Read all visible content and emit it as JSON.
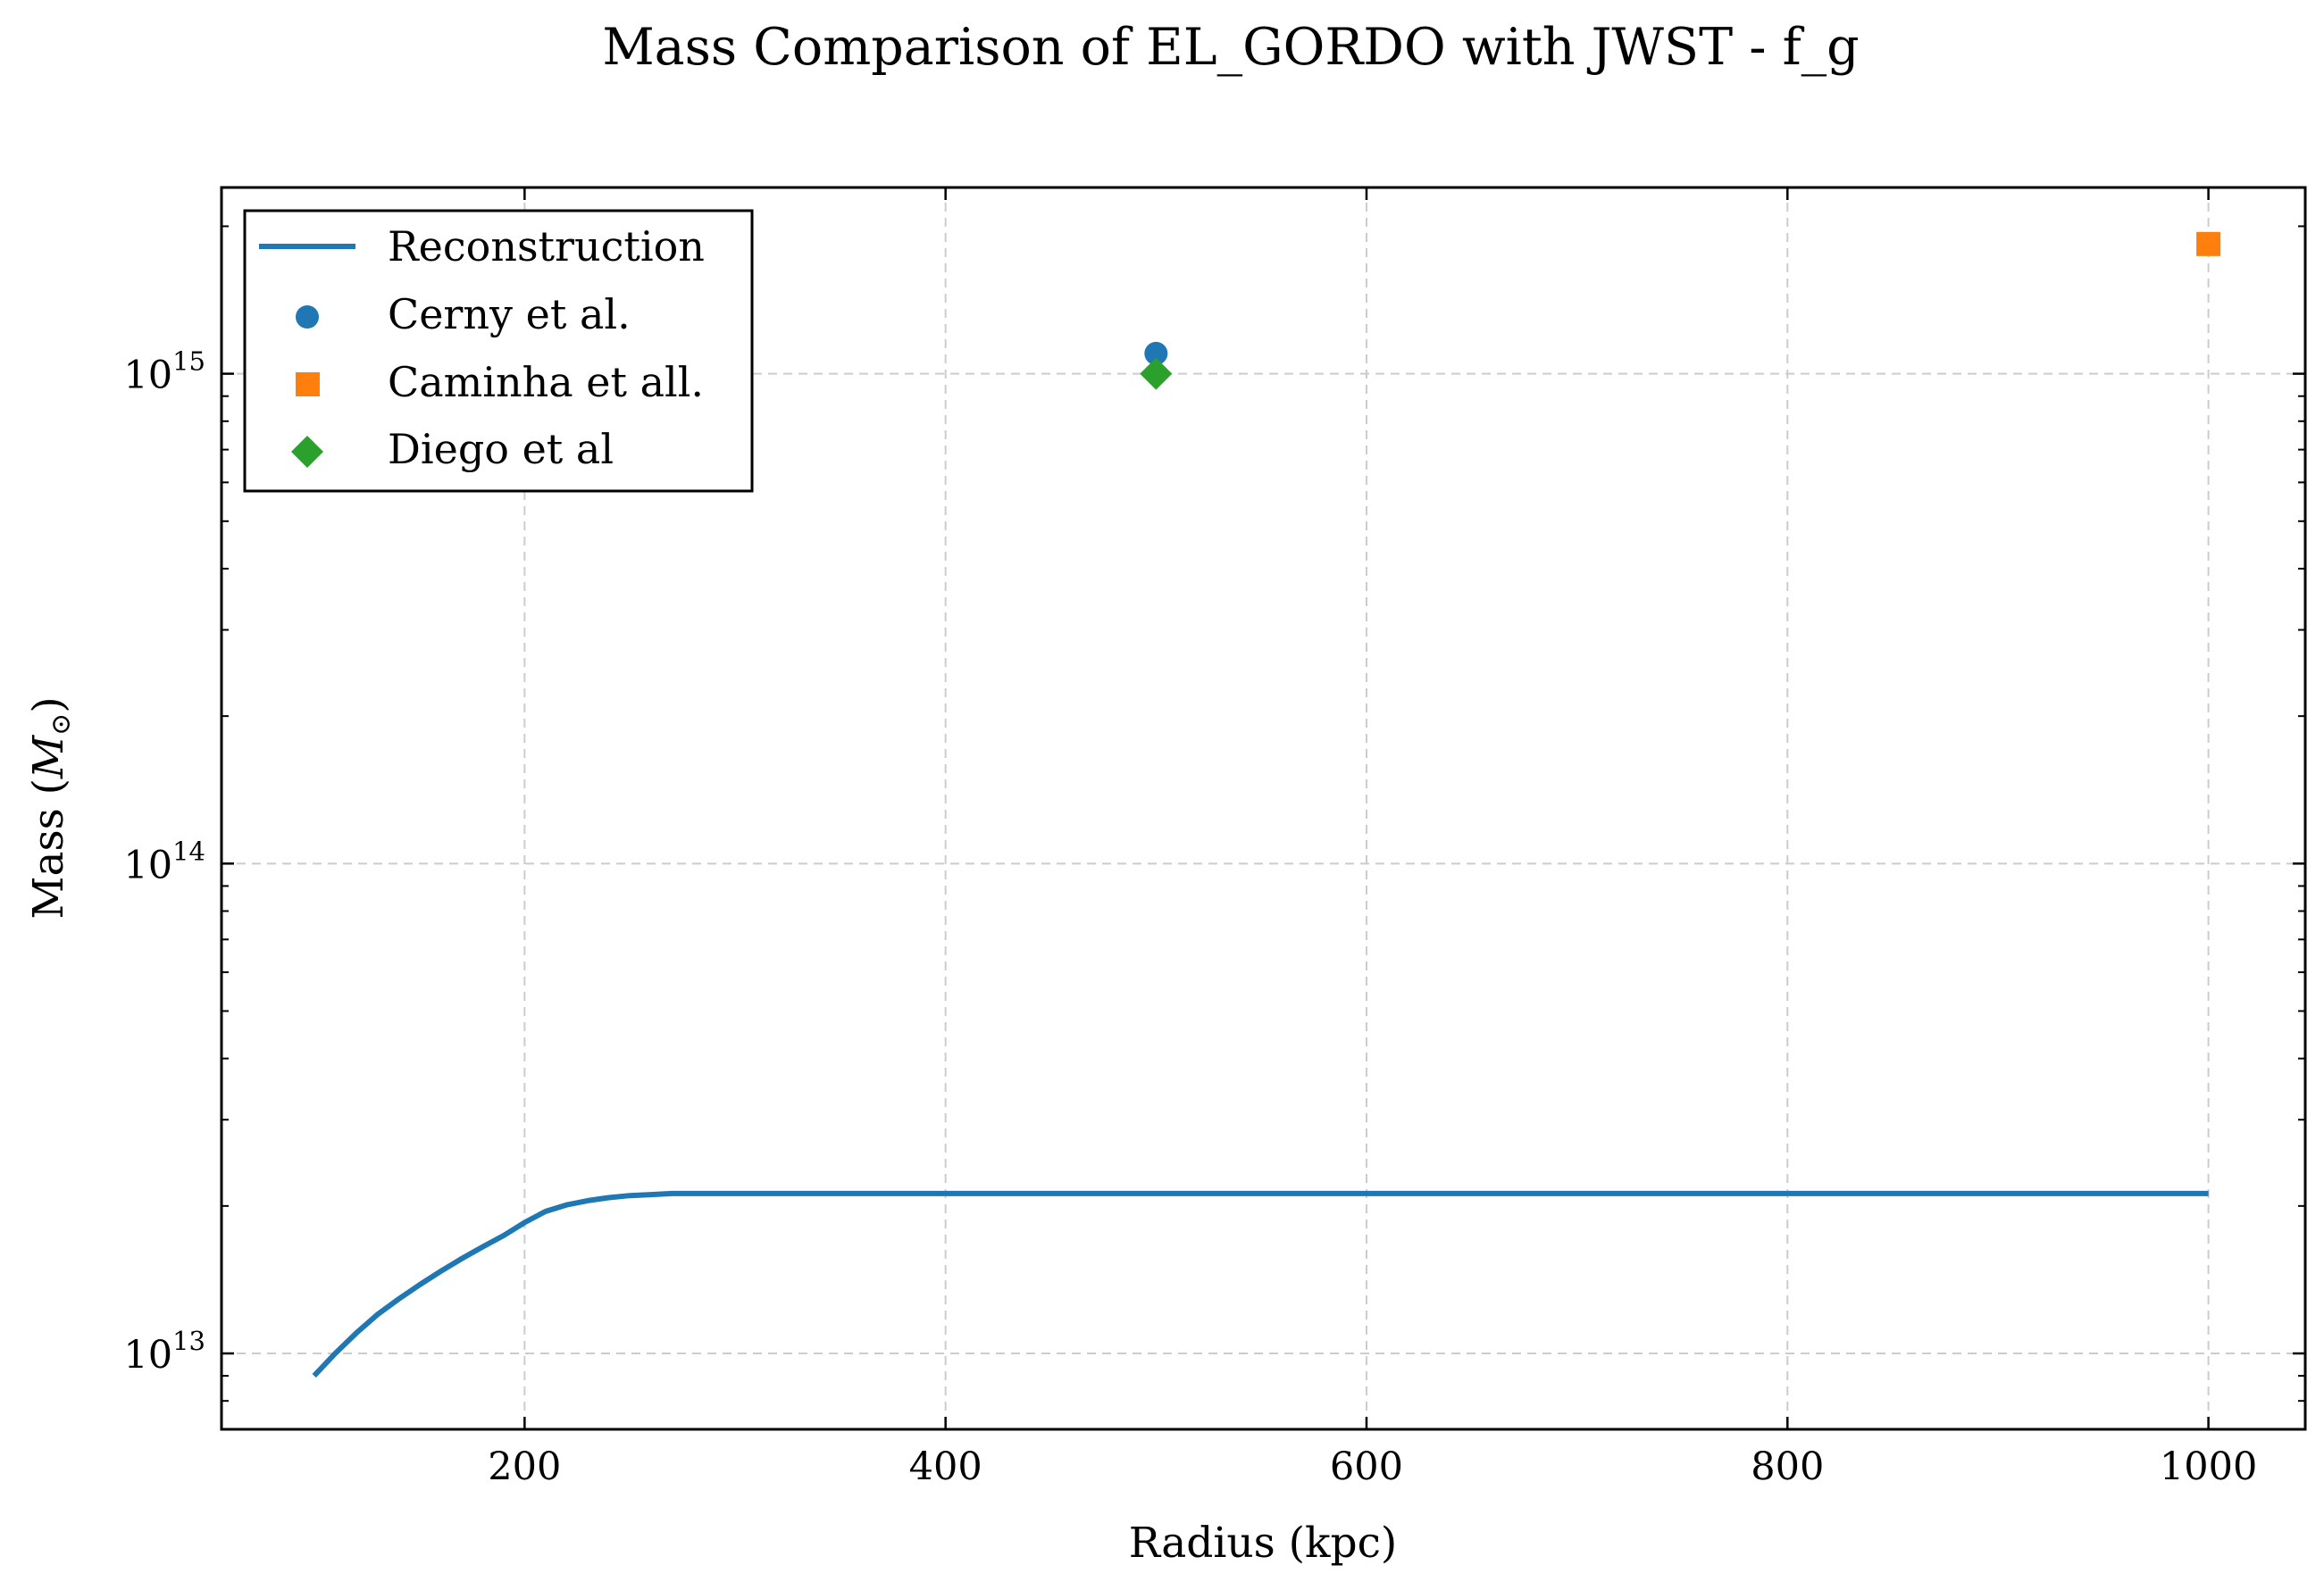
{
  "chart_data": {
    "type": "line",
    "title": "Mass Comparison of EL_GORDO with JWST - f_g",
    "xlabel": "Radius (kpc)",
    "ylabel_text": "Mass (",
    "ylabel_symbol": "M",
    "ylabel_subscript": "⊙",
    "ylabel_close": ")",
    "xlim": [
      56,
      1046
    ],
    "ylim": [
      7000000000000.0,
      2400000000000000.0
    ],
    "yscale": "log",
    "grid": true,
    "legend_position": "top-left",
    "x_ticks": [
      {
        "value": 200,
        "label": "200"
      },
      {
        "value": 400,
        "label": "400"
      },
      {
        "value": 600,
        "label": "600"
      },
      {
        "value": 800,
        "label": "800"
      },
      {
        "value": 1000,
        "label": "1000"
      }
    ],
    "y_ticks": [
      {
        "value": 10000000000000.0,
        "base": "10",
        "exp": "13"
      },
      {
        "value": 100000000000000.0,
        "base": "10",
        "exp": "14"
      },
      {
        "value": 1000000000000000.0,
        "base": "10",
        "exp": "15"
      }
    ],
    "series": [
      {
        "name": "Reconstruction",
        "kind": "line",
        "color": "#1f77b4",
        "x": [
          100,
          110,
          120,
          130,
          140,
          150,
          160,
          170,
          180,
          190,
          200,
          210,
          220,
          230,
          240,
          250,
          260,
          270,
          280,
          300,
          350,
          400,
          500,
          600,
          700,
          800,
          900,
          1000
        ],
        "y": [
          9000000000000.0,
          10000000000000.0,
          11000000000000.0,
          12000000000000.0,
          12900000000000.0,
          13800000000000.0,
          14700000000000.0,
          15600000000000.0,
          16500000000000.0,
          17400000000000.0,
          18500000000000.0,
          19500000000000.0,
          20100000000000.0,
          20500000000000.0,
          20800000000000.0,
          21000000000000.0,
          21100000000000.0,
          21200000000000.0,
          21200000000000.0,
          21200000000000.0,
          21200000000000.0,
          21200000000000.0,
          21200000000000.0,
          21200000000000.0,
          21200000000000.0,
          21200000000000.0,
          21200000000000.0,
          21200000000000.0
        ]
      },
      {
        "name": "Cerny et al.",
        "kind": "scatter",
        "marker": "circle",
        "color": "#1f77b4",
        "x": [
          500
        ],
        "y": [
          1100000000000000.0
        ]
      },
      {
        "name": "Caminha et all.",
        "kind": "scatter",
        "marker": "square",
        "color": "#ff7f0e",
        "x": [
          1000
        ],
        "y": [
          1840000000000000.0
        ]
      },
      {
        "name": "Diego et al",
        "kind": "scatter",
        "marker": "diamond",
        "color": "#2ca02c",
        "x": [
          500
        ],
        "y": [
          1000000000000000.0
        ]
      }
    ]
  }
}
